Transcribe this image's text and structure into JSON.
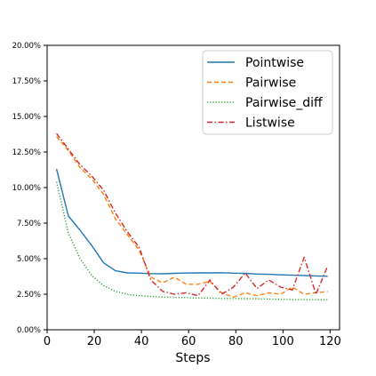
{
  "chart_data": {
    "type": "line",
    "title": "",
    "xlabel": "Steps",
    "ylabel": "",
    "xlim": [
      0,
      124
    ],
    "ylim": [
      0,
      20
    ],
    "xticks": [
      0,
      20,
      40,
      60,
      80,
      100,
      120
    ],
    "xtick_labels": [
      "0",
      "20",
      "40",
      "60",
      "80",
      "100",
      "120"
    ],
    "yticks": [
      0,
      2.5,
      5,
      7.5,
      10,
      12.5,
      15,
      17.5,
      20
    ],
    "ytick_labels": [
      "0.00%",
      "2.50%",
      "5.00%",
      "7.50%",
      "10.00%",
      "12.50%",
      "15.00%",
      "17.50%",
      "20.00%"
    ],
    "legend_position": "top-right",
    "grid": false,
    "series": [
      {
        "name": "Pointwise",
        "color": "#1f77b4",
        "dash": "solid",
        "x": [
          4,
          9,
          14,
          19,
          24,
          29,
          34,
          39,
          44,
          49,
          54,
          59,
          64,
          69,
          74,
          79,
          84,
          89,
          94,
          99,
          104,
          109,
          114,
          119
        ],
        "y": [
          11.3,
          8.0,
          7.0,
          5.9,
          4.7,
          4.15,
          4.0,
          3.98,
          3.95,
          3.94,
          3.97,
          3.99,
          4.0,
          4.0,
          4.01,
          3.98,
          3.97,
          3.92,
          3.9,
          3.86,
          3.84,
          3.82,
          3.79,
          3.76
        ]
      },
      {
        "name": "Pairwise",
        "color": "#ff7f0e",
        "dash": "dashed",
        "x": [
          4,
          9,
          14,
          19,
          24,
          29,
          34,
          39,
          44,
          49,
          54,
          59,
          64,
          69,
          74,
          79,
          84,
          89,
          94,
          99,
          104,
          109,
          114,
          119
        ],
        "y": [
          13.6,
          12.6,
          11.4,
          10.6,
          9.5,
          7.8,
          6.7,
          5.6,
          3.7,
          3.3,
          3.7,
          3.2,
          3.2,
          3.4,
          2.6,
          2.3,
          2.6,
          2.4,
          2.6,
          2.5,
          3.0,
          2.5,
          2.6,
          2.7
        ]
      },
      {
        "name": "Pairwise_diff",
        "color": "#2ca02c",
        "dash": "dotted",
        "x": [
          4,
          9,
          14,
          19,
          24,
          29,
          34,
          39,
          44,
          49,
          54,
          59,
          64,
          69,
          74,
          79,
          84,
          89,
          94,
          99,
          104,
          109,
          114,
          119
        ],
        "y": [
          10.4,
          6.8,
          5.0,
          3.8,
          3.1,
          2.7,
          2.5,
          2.4,
          2.35,
          2.3,
          2.28,
          2.26,
          2.24,
          2.22,
          2.2,
          2.2,
          2.19,
          2.18,
          2.16,
          2.14,
          2.13,
          2.12,
          2.12,
          2.11
        ]
      },
      {
        "name": "Listwise",
        "color": "#d62728",
        "dash": "dashdot",
        "x": [
          4,
          9,
          14,
          19,
          24,
          29,
          34,
          39,
          44,
          49,
          54,
          59,
          64,
          69,
          74,
          79,
          84,
          89,
          94,
          99,
          104,
          109,
          114,
          119
        ],
        "y": [
          13.8,
          12.7,
          11.6,
          10.8,
          9.8,
          8.2,
          6.9,
          5.8,
          3.5,
          2.7,
          2.5,
          2.6,
          2.4,
          3.5,
          2.5,
          3.0,
          4.0,
          2.9,
          3.5,
          3.0,
          2.8,
          5.1,
          2.5,
          4.5
        ]
      }
    ]
  }
}
